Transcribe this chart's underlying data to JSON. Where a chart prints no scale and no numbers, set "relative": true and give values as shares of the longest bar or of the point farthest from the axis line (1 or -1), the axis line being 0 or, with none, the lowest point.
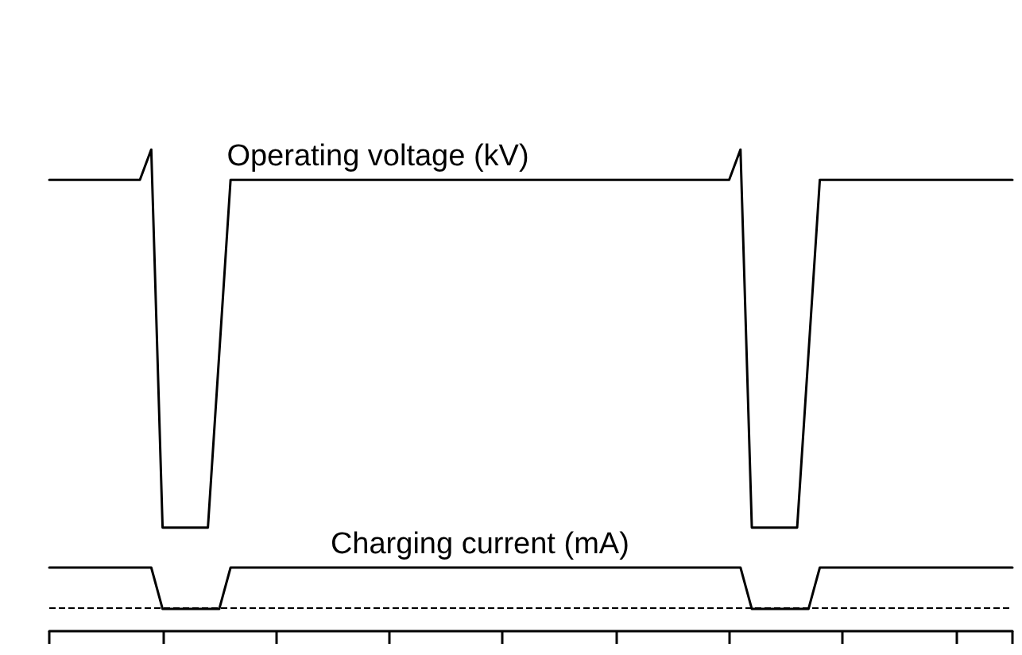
{
  "chart_data": {
    "type": "line",
    "relative": true,
    "line_style": "solid",
    "categories": [
      null,
      null,
      null,
      null,
      null,
      null,
      null,
      null,
      null,
      null,
      null,
      null,
      null,
      null,
      null,
      null,
      null,
      null,
      null,
      null,
      null,
      null,
      null,
      null,
      null,
      null,
      null,
      null,
      null,
      null,
      null,
      null,
      null,
      null,
      null,
      null,
      null,
      null,
      null,
      null,
      null,
      null,
      null,
      null,
      null,
      null,
      null,
      null,
      null,
      null,
      null,
      null,
      null,
      null,
      null,
      null,
      null,
      null,
      null,
      null,
      null,
      null,
      null,
      null,
      null,
      null,
      null,
      null,
      null,
      null,
      null,
      null,
      null,
      null,
      null,
      null,
      null,
      null,
      null,
      null,
      null,
      null,
      null,
      null,
      null,
      null
    ],
    "series": [
      {
        "name": "Operating voltage (kV)",
        "color": "#000000",
        "values": [
          0.937,
          null,
          null,
          null,
          null,
          null,
          null,
          null,
          0.937,
          1,
          0.215,
          null,
          null,
          null,
          0.215,
          null,
          0.937,
          null,
          null,
          null,
          null,
          null,
          null,
          null,
          null,
          null,
          null,
          null,
          null,
          null,
          null,
          null,
          null,
          null,
          null,
          null,
          null,
          null,
          null,
          null,
          null,
          null,
          null,
          null,
          null,
          null,
          null,
          null,
          null,
          null,
          null,
          null,
          null,
          null,
          null,
          null,
          null,
          null,
          null,
          null,
          0.937,
          1,
          0.215,
          null,
          null,
          null,
          0.215,
          null,
          0.937,
          null,
          null,
          null,
          null,
          null,
          null,
          null,
          null,
          null,
          null,
          null,
          null,
          null,
          null,
          null,
          null,
          0.937
        ]
      },
      {
        "name": "Charging current (mA)",
        "color": "#000000",
        "values": [
          0.132,
          null,
          null,
          null,
          null,
          null,
          null,
          null,
          null,
          0.132,
          0.046,
          null,
          null,
          null,
          null,
          0.046,
          0.132,
          null,
          null,
          null,
          null,
          null,
          null,
          null,
          null,
          null,
          null,
          null,
          null,
          null,
          null,
          null,
          null,
          null,
          null,
          null,
          null,
          null,
          null,
          null,
          null,
          null,
          null,
          null,
          null,
          null,
          null,
          null,
          null,
          null,
          null,
          null,
          null,
          null,
          null,
          null,
          null,
          null,
          null,
          null,
          null,
          0.132,
          0.046,
          null,
          null,
          null,
          null,
          0.046,
          0.132,
          null,
          null,
          null,
          null,
          null,
          null,
          null,
          null,
          null,
          null,
          null,
          null,
          null,
          null,
          null,
          null,
          0.132
        ]
      }
    ],
    "ref_lines": [
      {
        "axis": "y",
        "value": 0.046,
        "color": "#000000",
        "line_style": "dashed"
      }
    ]
  }
}
